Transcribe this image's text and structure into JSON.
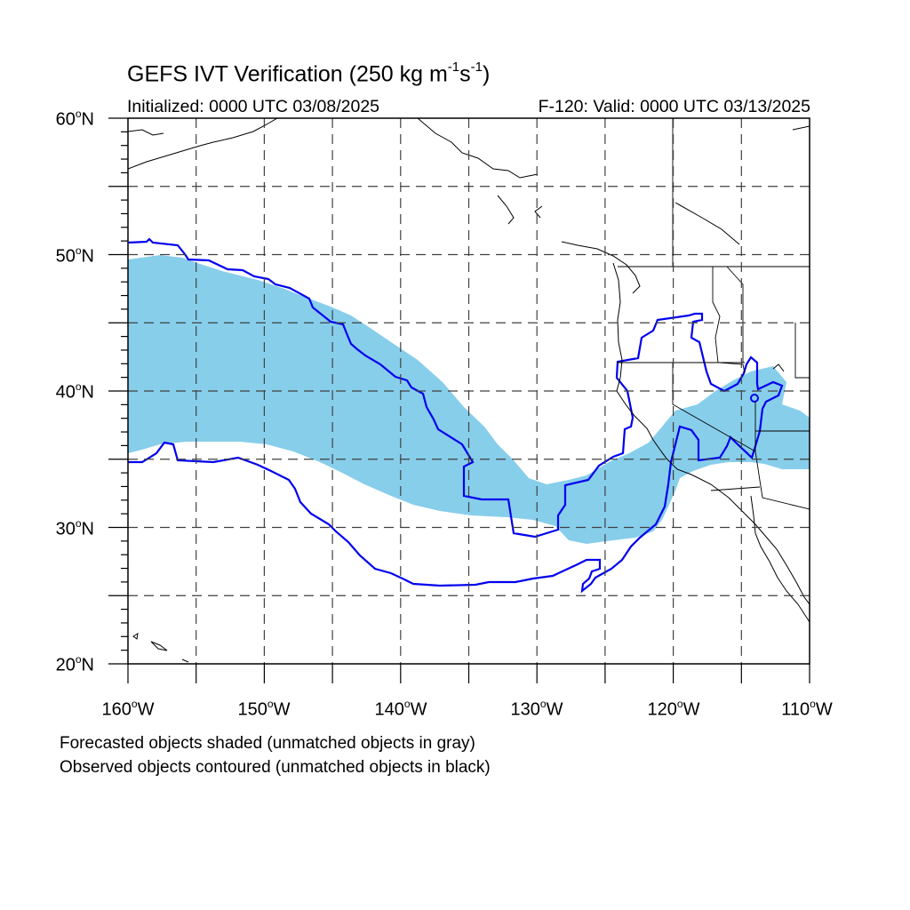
{
  "header": {
    "title_prefix": "GEFS IVT Verification (250 kg m",
    "title_exp1": "-1",
    "title_mid": "s",
    "title_exp2": "-1",
    "title_suffix": ")",
    "init_label": "Initialized: 0000 UTC 03/08/2025",
    "valid_label": "F-120: Valid: 0000 UTC 03/13/2025"
  },
  "axes": {
    "degree_symbol": "o",
    "lat_ticks": [
      {
        "value": "60",
        "hemi": "N"
      },
      {
        "value": "50",
        "hemi": "N"
      },
      {
        "value": "40",
        "hemi": "N"
      },
      {
        "value": "30",
        "hemi": "N"
      },
      {
        "value": "20",
        "hemi": "N"
      }
    ],
    "lon_ticks": [
      {
        "value": "160",
        "hemi": "W"
      },
      {
        "value": "150",
        "hemi": "W"
      },
      {
        "value": "140",
        "hemi": "W"
      },
      {
        "value": "130",
        "hemi": "W"
      },
      {
        "value": "120",
        "hemi": "W"
      },
      {
        "value": "110",
        "hemi": "W"
      }
    ],
    "lat_range": [
      20,
      60
    ],
    "lon_range": [
      -160,
      -110
    ],
    "grid_spacing_deg": 5,
    "grid": true
  },
  "legend": {
    "line1": "Forecasted objects shaded (unmatched objects in gray)",
    "line2": "Observed objects contoured (unmatched objects in black)"
  },
  "colors": {
    "forecast_fill": "#87ceeb",
    "observed_contour": "#0000ee",
    "coastline": "#000000",
    "grid": "#404040"
  },
  "map_features": {
    "forecast_objects": 1,
    "observed_objects": 1,
    "matched": true
  }
}
